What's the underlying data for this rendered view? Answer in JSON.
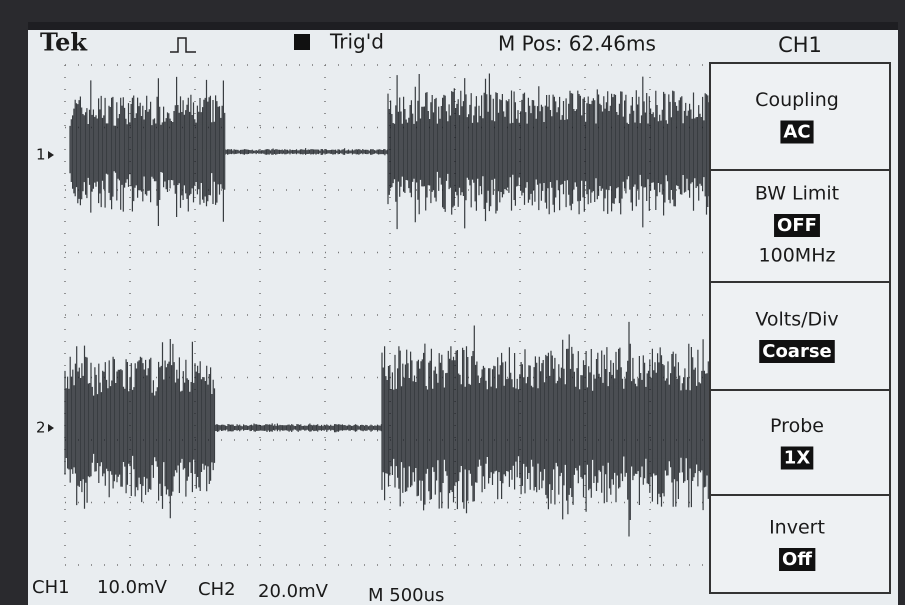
{
  "header": {
    "brand": "Tek",
    "trigger_status": "Trig'd",
    "position": "M Pos: 62.46ms",
    "menu_title": "CH1"
  },
  "menu": [
    {
      "label": "Coupling",
      "value": "AC"
    },
    {
      "label": "BW Limit",
      "value": "OFF",
      "detail": "100MHz"
    },
    {
      "label": "Volts/Div",
      "value": "Coarse"
    },
    {
      "label": "Probe",
      "value": "1X"
    },
    {
      "label": "Invert",
      "value": "Off"
    }
  ],
  "channels": [
    {
      "marker": "1"
    },
    {
      "marker": "2"
    }
  ],
  "footer": {
    "ch1": "CH1",
    "ch1_scale": "10.0mV",
    "ch2": "CH2",
    "ch2_scale": "20.0mV",
    "timebase": "M 500us"
  }
}
